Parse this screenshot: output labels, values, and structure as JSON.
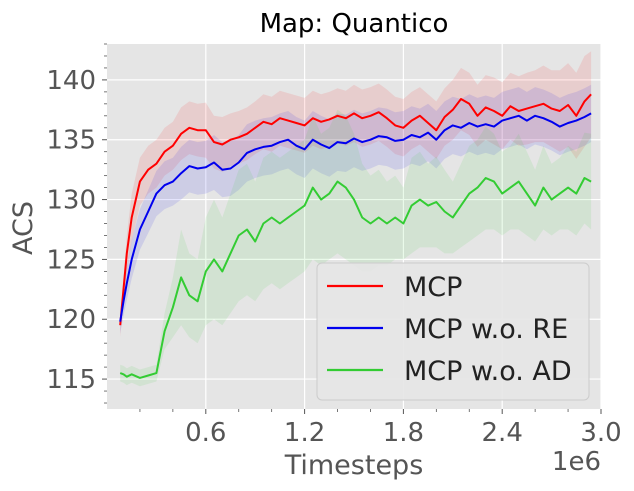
{
  "chart_data": {
    "type": "line",
    "title": "Map: Quantico",
    "xlabel": "Timesteps",
    "ylabel": "ACS",
    "x_multiplier": "1e6",
    "xlim": [
      0,
      3.0
    ],
    "ylim": [
      112.5,
      143
    ],
    "xticks": [
      "0.6",
      "1.2",
      "1.8",
      "2.4",
      "3.0"
    ],
    "yticks": [
      "115",
      "120",
      "125",
      "130",
      "135",
      "140"
    ],
    "grid": true,
    "legend_position": "lower-right",
    "x": [
      0.08,
      0.1,
      0.12,
      0.15,
      0.2,
      0.25,
      0.3,
      0.35,
      0.4,
      0.45,
      0.5,
      0.55,
      0.6,
      0.65,
      0.7,
      0.75,
      0.8,
      0.85,
      0.9,
      0.95,
      1.0,
      1.05,
      1.1,
      1.15,
      1.2,
      1.25,
      1.3,
      1.35,
      1.4,
      1.45,
      1.5,
      1.55,
      1.6,
      1.65,
      1.7,
      1.75,
      1.8,
      1.85,
      1.9,
      1.95,
      2.0,
      2.05,
      2.1,
      2.15,
      2.2,
      2.25,
      2.3,
      2.35,
      2.4,
      2.45,
      2.5,
      2.55,
      2.6,
      2.65,
      2.7,
      2.75,
      2.8,
      2.85,
      2.9,
      2.94
    ],
    "series": [
      {
        "name": "MCP",
        "color": "#ff0000",
        "values": [
          119.5,
          122.5,
          125.5,
          128.5,
          131.5,
          132.5,
          133.0,
          134.0,
          134.5,
          135.5,
          136.0,
          135.8,
          135.8,
          134.8,
          134.6,
          135.0,
          135.2,
          135.5,
          136.0,
          136.5,
          136.3,
          136.8,
          136.6,
          136.4,
          136.2,
          136.8,
          136.5,
          136.7,
          137.0,
          136.8,
          137.2,
          136.8,
          137.0,
          137.3,
          136.8,
          136.2,
          136.0,
          136.6,
          137.0,
          136.4,
          135.8,
          136.9,
          137.5,
          138.4,
          138.0,
          137.0,
          137.7,
          137.4,
          137.0,
          137.8,
          137.4,
          137.6,
          137.8,
          138.0,
          137.6,
          137.4,
          137.9,
          137.0,
          138.2,
          138.8
        ],
        "band": [
          [
            118.5,
            121.5,
            124.0,
            126.5,
            129.5,
            130.5,
            131.0,
            132.0,
            132.5,
            133.3,
            133.8,
            133.6,
            133.5,
            132.6,
            132.3,
            132.8,
            133.0,
            133.3,
            133.8,
            134.2,
            134.0,
            134.5,
            134.3,
            134.1,
            133.9,
            134.5,
            134.2,
            134.4,
            134.7,
            134.5,
            134.8,
            134.4,
            134.6,
            134.9,
            134.4,
            133.8,
            133.6,
            134.2,
            134.6,
            134.0,
            133.4,
            134.5,
            135.0,
            135.8,
            135.4,
            134.4,
            135.0,
            134.6,
            134.2,
            135.0,
            134.5,
            134.6,
            134.8,
            134.8,
            134.4,
            134.0,
            134.4,
            133.4,
            134.4,
            135.2
          ],
          [
            120.5,
            123.5,
            127.0,
            130.5,
            133.5,
            134.5,
            135.0,
            136.0,
            136.5,
            137.7,
            138.2,
            138.0,
            138.1,
            137.0,
            136.9,
            137.2,
            137.4,
            137.7,
            138.2,
            138.8,
            138.6,
            139.1,
            138.9,
            138.7,
            138.5,
            139.1,
            138.8,
            139.0,
            139.3,
            139.1,
            139.6,
            139.2,
            139.4,
            139.7,
            139.2,
            138.6,
            138.4,
            139.0,
            139.4,
            138.8,
            138.2,
            139.3,
            140.0,
            141.0,
            140.6,
            139.6,
            140.4,
            140.2,
            139.8,
            140.6,
            140.3,
            140.6,
            140.8,
            141.2,
            140.8,
            140.8,
            141.4,
            140.6,
            142.0,
            142.4
          ]
        ]
      },
      {
        "name": "MCP w.o. RE",
        "color": "#0000ee",
        "values": [
          119.8,
          121.5,
          123.0,
          125.0,
          127.5,
          129.0,
          130.5,
          131.2,
          131.5,
          132.2,
          132.8,
          132.6,
          132.7,
          133.1,
          132.5,
          132.6,
          133.1,
          133.9,
          134.2,
          134.4,
          134.5,
          134.8,
          135.0,
          134.5,
          134.2,
          135.0,
          134.6,
          134.3,
          134.8,
          134.7,
          135.1,
          134.8,
          135.0,
          135.3,
          135.2,
          134.9,
          135.0,
          135.4,
          135.2,
          135.6,
          135.0,
          135.8,
          136.2,
          136.0,
          136.4,
          136.1,
          136.3,
          136.1,
          136.6,
          136.8,
          137.0,
          136.6,
          137.0,
          136.8,
          136.5,
          136.1,
          136.4,
          136.6,
          136.9,
          137.2
        ],
        "band": [
          [
            118.8,
            120.3,
            121.6,
            123.4,
            125.8,
            127.2,
            128.6,
            129.2,
            129.5,
            130.0,
            130.6,
            130.4,
            130.5,
            130.8,
            130.2,
            130.3,
            130.8,
            131.5,
            131.8,
            132.0,
            132.1,
            132.4,
            132.6,
            132.1,
            131.8,
            132.6,
            132.2,
            131.9,
            132.4,
            132.3,
            132.7,
            132.4,
            132.6,
            132.9,
            132.8,
            132.5,
            132.6,
            133.0,
            132.8,
            133.2,
            132.6,
            133.4,
            133.8,
            133.6,
            134.0,
            133.7,
            133.9,
            133.7,
            134.2,
            134.4,
            134.6,
            134.2,
            134.6,
            134.4,
            134.1,
            133.7,
            134.0,
            134.2,
            134.5,
            134.8
          ],
          [
            120.8,
            122.7,
            124.4,
            126.6,
            129.2,
            130.8,
            132.4,
            133.2,
            133.5,
            134.4,
            135.0,
            134.8,
            134.9,
            135.4,
            134.8,
            134.9,
            135.4,
            136.3,
            136.6,
            136.8,
            136.9,
            137.2,
            137.4,
            136.9,
            136.6,
            137.4,
            137.0,
            136.7,
            137.2,
            137.1,
            137.5,
            137.2,
            137.4,
            137.7,
            137.6,
            137.3,
            137.4,
            137.8,
            137.6,
            138.0,
            137.4,
            138.2,
            138.6,
            138.4,
            138.8,
            138.5,
            138.7,
            138.5,
            139.0,
            139.2,
            139.4,
            139.0,
            139.4,
            139.2,
            138.9,
            138.5,
            138.8,
            139.0,
            139.3,
            139.6
          ]
        ]
      },
      {
        "name": "MCP w.o. AD",
        "color": "#33cc33",
        "values": [
          115.5,
          115.4,
          115.2,
          115.4,
          115.1,
          115.3,
          115.5,
          119.0,
          121.0,
          123.5,
          122.0,
          121.5,
          124.0,
          125.0,
          124.0,
          125.5,
          127.0,
          127.5,
          126.5,
          128.0,
          128.5,
          128.0,
          128.5,
          129.0,
          129.5,
          131.0,
          130.0,
          130.5,
          131.5,
          131.0,
          130.0,
          128.5,
          128.0,
          128.5,
          128.0,
          128.5,
          128.0,
          129.5,
          130.0,
          129.5,
          129.8,
          129.0,
          128.5,
          129.5,
          130.5,
          131.0,
          131.8,
          131.5,
          130.5,
          131.0,
          131.5,
          130.5,
          129.5,
          131.0,
          130.0,
          130.5,
          131.0,
          130.5,
          131.8,
          131.5
        ],
        "band": [
          [
            114.8,
            114.7,
            114.5,
            114.7,
            114.4,
            114.6,
            114.8,
            117.5,
            118.5,
            119.5,
            118.5,
            118.0,
            119.5,
            120.0,
            119.5,
            120.5,
            121.5,
            122.0,
            121.5,
            122.5,
            123.0,
            122.5,
            123.0,
            123.5,
            124.0,
            125.0,
            124.5,
            125.0,
            125.5,
            125.0,
            124.5,
            124.0,
            124.0,
            124.5,
            124.5,
            125.0,
            125.0,
            125.5,
            126.0,
            126.0,
            126.0,
            125.5,
            125.5,
            126.0,
            126.5,
            127.0,
            127.5,
            127.5,
            127.0,
            127.5,
            127.5,
            127.0,
            126.5,
            127.5,
            127.0,
            127.5,
            127.5,
            127.0,
            128.0,
            127.5
          ],
          [
            116.2,
            116.1,
            115.9,
            116.1,
            115.8,
            116.0,
            116.2,
            120.5,
            123.5,
            127.5,
            125.5,
            125.0,
            128.5,
            130.0,
            128.5,
            130.5,
            132.5,
            133.0,
            131.5,
            133.5,
            134.0,
            133.5,
            134.0,
            134.5,
            135.0,
            137.0,
            135.5,
            136.0,
            137.5,
            137.0,
            135.5,
            133.0,
            132.0,
            132.5,
            131.5,
            132.0,
            131.0,
            133.5,
            134.0,
            133.0,
            133.6,
            132.5,
            131.5,
            133.0,
            134.5,
            135.0,
            136.1,
            135.5,
            134.0,
            134.5,
            135.5,
            134.0,
            132.5,
            134.5,
            133.0,
            133.5,
            134.5,
            134.0,
            135.6,
            135.5
          ]
        ]
      }
    ]
  }
}
